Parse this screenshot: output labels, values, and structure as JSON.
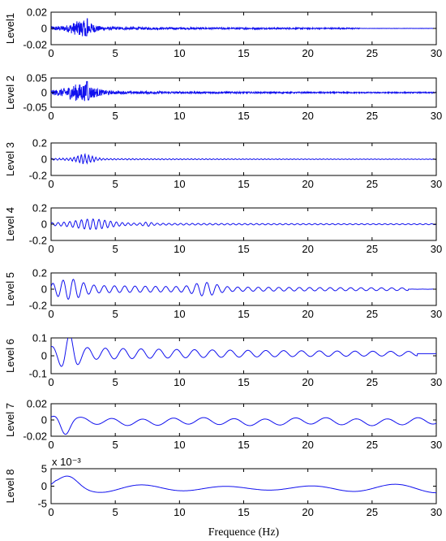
{
  "chart_data": {
    "type": "line",
    "xlabel": "Frequence (Hz)",
    "xlim": [
      0,
      30
    ],
    "x_ticks": [
      0,
      5,
      10,
      15,
      20,
      25,
      30
    ],
    "line_color": "#1010ee",
    "panels": [
      {
        "ylabel": "Level1",
        "ylim": [
          -0.02,
          0.02
        ],
        "y_ticks": [
          -0.02,
          0,
          0.02
        ],
        "y_tick_labels": [
          "-0.02",
          "0",
          "0.02"
        ],
        "exponent_label": ""
      },
      {
        "ylabel": "Level 2",
        "ylim": [
          -0.05,
          0.05
        ],
        "y_ticks": [
          -0.05,
          0,
          0.05
        ],
        "y_tick_labels": [
          "-0.05",
          "0",
          "0.05"
        ],
        "exponent_label": ""
      },
      {
        "ylabel": "Level 3",
        "ylim": [
          -0.2,
          0.2
        ],
        "y_ticks": [
          -0.2,
          0,
          0.2
        ],
        "y_tick_labels": [
          "-0.2",
          "0",
          "0.2"
        ],
        "exponent_label": ""
      },
      {
        "ylabel": "Level 4",
        "ylim": [
          -0.2,
          0.2
        ],
        "y_ticks": [
          -0.2,
          0,
          0.2
        ],
        "y_tick_labels": [
          "-0.2",
          "0",
          "0.2"
        ],
        "exponent_label": ""
      },
      {
        "ylabel": "Level 5",
        "ylim": [
          -0.2,
          0.2
        ],
        "y_ticks": [
          -0.2,
          0,
          0.2
        ],
        "y_tick_labels": [
          "-0.2",
          "0",
          "0.2"
        ],
        "exponent_label": ""
      },
      {
        "ylabel": "Level 6",
        "ylim": [
          -0.1,
          0.1
        ],
        "y_ticks": [
          -0.1,
          0,
          0.1
        ],
        "y_tick_labels": [
          "-0.1",
          "0",
          "0.1"
        ],
        "exponent_label": ""
      },
      {
        "ylabel": "Level 7",
        "ylim": [
          -0.02,
          0.02
        ],
        "y_ticks": [
          -0.02,
          0,
          0.02
        ],
        "y_tick_labels": [
          "-0.02",
          "0",
          "0.02"
        ],
        "exponent_label": ""
      },
      {
        "ylabel": "Level 8",
        "ylim": [
          -5,
          5
        ],
        "y_ticks": [
          -5,
          0,
          5
        ],
        "y_tick_labels": [
          "-5",
          "0",
          "5"
        ],
        "exponent_label": "x 10⁻³"
      }
    ]
  }
}
